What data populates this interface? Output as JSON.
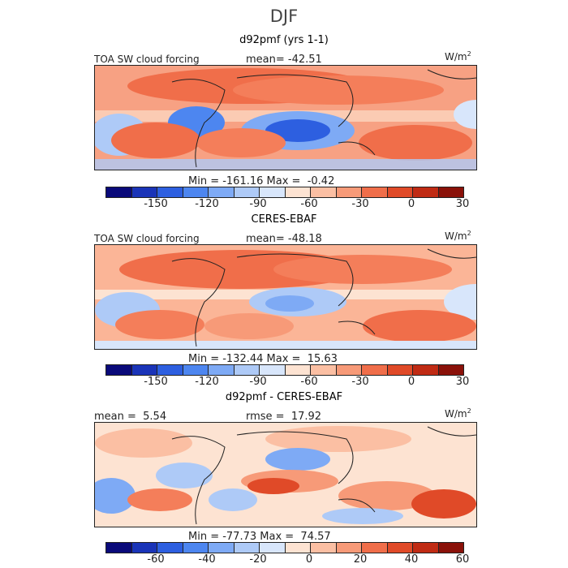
{
  "season": "DJF",
  "palette": [
    "#0a0a7a",
    "#1a34b8",
    "#2d5fe0",
    "#4d86f0",
    "#7eaaf5",
    "#aecaf7",
    "#d8e6fb",
    "#fde3d2",
    "#fbbfa3",
    "#f79a78",
    "#f06e4a",
    "#e04a28",
    "#c02b14",
    "#8a1109"
  ],
  "panels": [
    {
      "title": "d92pmf (yrs 1-1)",
      "field_label": "TOA SW cloud forcing",
      "stat_text": "mean= -42.51",
      "units": "W/m",
      "units_exp": "2",
      "min_max": "Min = -161.16 Max =  -0.42",
      "ticks": [
        "-150",
        "-120",
        "-90",
        "-60",
        "-30",
        "0",
        "30"
      ]
    },
    {
      "title": "CERES-EBAF",
      "field_label": "TOA SW cloud forcing",
      "stat_text": "mean= -48.18",
      "units": "W/m",
      "units_exp": "2",
      "min_max": "Min = -132.44 Max =  15.63",
      "ticks": [
        "-150",
        "-120",
        "-90",
        "-60",
        "-30",
        "0",
        "30"
      ]
    },
    {
      "title": "d92pmf - CERES-EBAF",
      "mean_text": "mean =  5.54",
      "rmse_text": "rmse =  17.92",
      "units": "W/m",
      "units_exp": "2",
      "min_max": "Min = -77.73 Max =  74.57",
      "ticks": [
        "-60",
        "-40",
        "-20",
        "0",
        "20",
        "40",
        "60"
      ]
    }
  ]
}
